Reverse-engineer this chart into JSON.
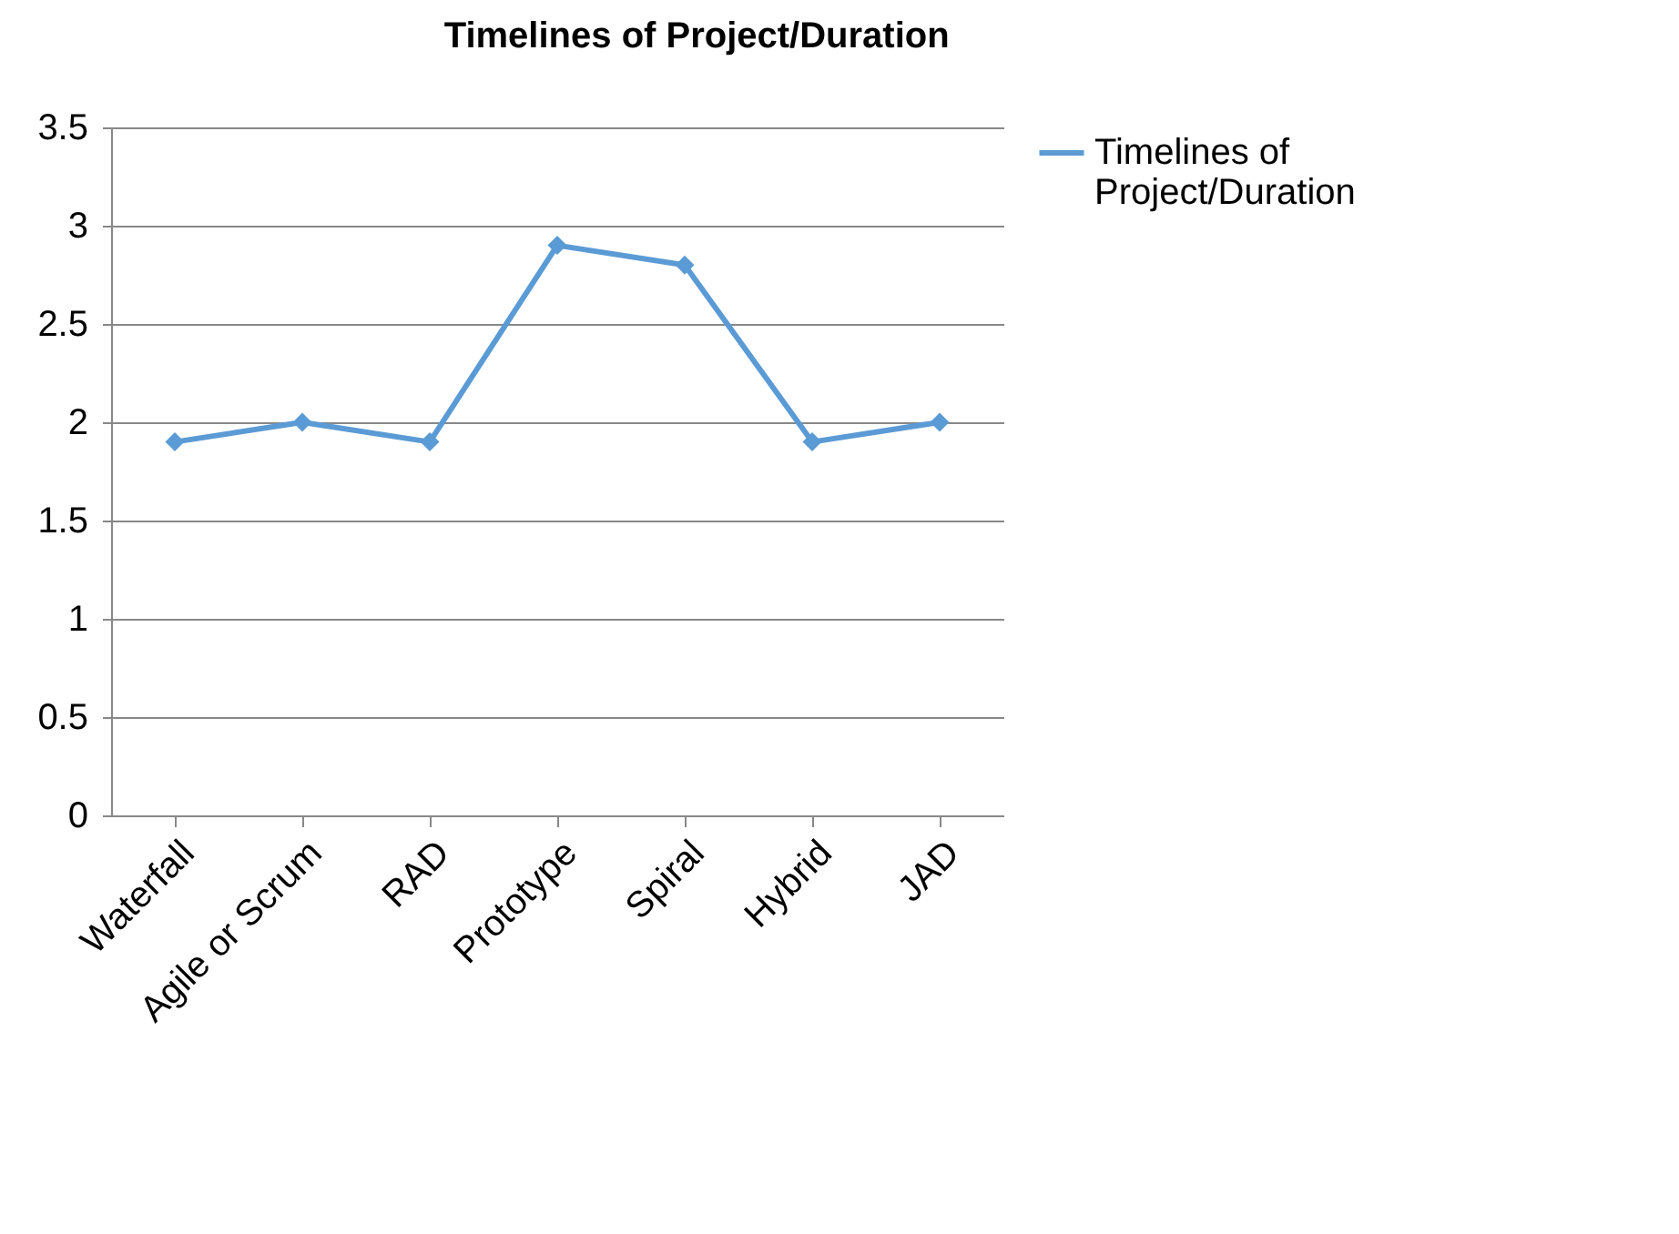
{
  "chart_data": {
    "type": "line",
    "title": "Timelines  of Project/Duration",
    "categories": [
      "Waterfall",
      "Agile or Scrum",
      "RAD",
      "Prototype",
      "Spiral",
      "Hybrid",
      "JAD"
    ],
    "series": [
      {
        "name": "Timelines  of Project/Duration",
        "color": "#5b9bd5",
        "values": [
          1.9,
          2.0,
          1.9,
          2.9,
          2.8,
          1.9,
          2.0
        ]
      }
    ],
    "ylim": [
      0,
      3.5
    ],
    "yticks": [
      0,
      0.5,
      1,
      1.5,
      2,
      2.5,
      3,
      3.5
    ],
    "grid": "y",
    "legend": "right",
    "marker": "diamond",
    "line_style": "solid"
  }
}
